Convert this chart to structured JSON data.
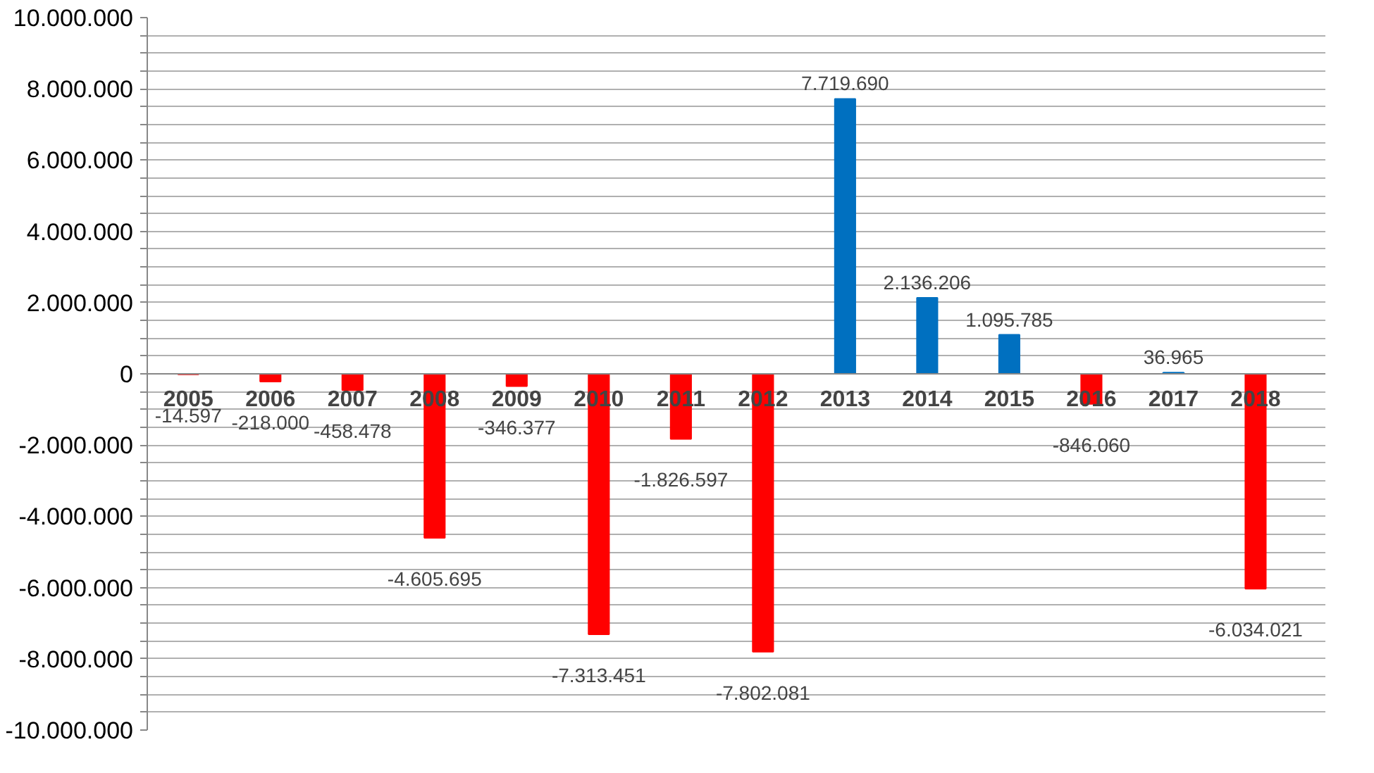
{
  "chart_data": {
    "type": "bar",
    "categories": [
      "2005",
      "2006",
      "2007",
      "2008",
      "2009",
      "2010",
      "2011",
      "2012",
      "2013",
      "2014",
      "2015",
      "2016",
      "2017",
      "2018"
    ],
    "values": [
      -14597,
      -218000,
      -458478,
      -4605695,
      -346377,
      -7313451,
      -1826597,
      -7802081,
      7719690,
      2136206,
      1095785,
      -846060,
      36965,
      -6034021
    ],
    "value_labels": [
      "-14.597",
      "-218.000",
      "-458.478",
      "-4.605.695",
      "-346.377",
      "-7.313.451",
      "-1.826.597",
      "-7.802.081",
      "7.719.690",
      "2.136.206",
      "1.095.785",
      "-846.060",
      "36.965",
      "-6.034.021"
    ],
    "colors": [
      "#ff0000",
      "#ff0000",
      "#ff0000",
      "#ff0000",
      "#ff0000",
      "#ff0000",
      "#ff0000",
      "#ff0000",
      "#0070c0",
      "#0070c0",
      "#0070c0",
      "#ff0000",
      "#0070c0",
      "#ff0000"
    ],
    "ylim": [
      -10000000,
      10000000
    ],
    "yticks": [
      {
        "value": -10000000,
        "label": "-10.000.000"
      },
      {
        "value": -9500000,
        "label": null
      },
      {
        "value": -9000000,
        "label": null
      },
      {
        "value": -8500000,
        "label": null
      },
      {
        "value": -8000000,
        "label": "-8.000.000"
      },
      {
        "value": -7500000,
        "label": null
      },
      {
        "value": -7000000,
        "label": null
      },
      {
        "value": -6500000,
        "label": null
      },
      {
        "value": -6000000,
        "label": "-6.000.000"
      },
      {
        "value": -5500000,
        "label": null
      },
      {
        "value": -5000000,
        "label": null
      },
      {
        "value": -4500000,
        "label": null
      },
      {
        "value": -4000000,
        "label": "-4.000.000"
      },
      {
        "value": -3500000,
        "label": null
      },
      {
        "value": -3000000,
        "label": null
      },
      {
        "value": -2500000,
        "label": null
      },
      {
        "value": -2000000,
        "label": "-2.000.000"
      },
      {
        "value": -1500000,
        "label": null
      },
      {
        "value": -1000000,
        "label": null
      },
      {
        "value": -500000,
        "label": null
      },
      {
        "value": 0,
        "label": "0"
      },
      {
        "value": 500000,
        "label": null
      },
      {
        "value": 1000000,
        "label": null
      },
      {
        "value": 1500000,
        "label": null
      },
      {
        "value": 2000000,
        "label": "2.000.000"
      },
      {
        "value": 2500000,
        "label": null
      },
      {
        "value": 3000000,
        "label": null
      },
      {
        "value": 3500000,
        "label": null
      },
      {
        "value": 4000000,
        "label": "4.000.000"
      },
      {
        "value": 4500000,
        "label": null
      },
      {
        "value": 5000000,
        "label": null
      },
      {
        "value": 5500000,
        "label": null
      },
      {
        "value": 6000000,
        "label": "6.000.000"
      },
      {
        "value": 6500000,
        "label": null
      },
      {
        "value": 7000000,
        "label": null
      },
      {
        "value": 7500000,
        "label": null
      },
      {
        "value": 8000000,
        "label": "8.000.000"
      },
      {
        "value": 8500000,
        "label": null
      },
      {
        "value": 9000000,
        "label": null
      },
      {
        "value": 9500000,
        "label": null
      },
      {
        "value": 10000000,
        "label": "10.000.000"
      }
    ],
    "grid": "y"
  }
}
